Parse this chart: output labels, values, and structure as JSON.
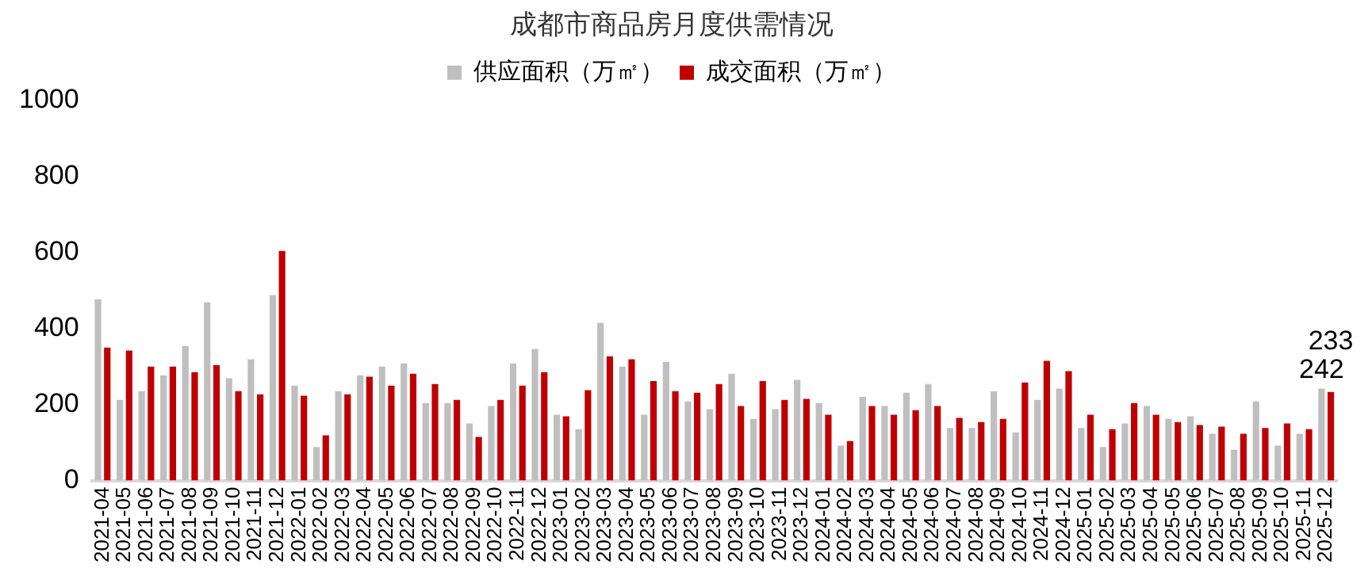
{
  "chart_data": {
    "type": "bar",
    "title": "成都市商品房月度供需情况",
    "categories": [
      "2021-04",
      "2021-05",
      "2021-06",
      "2021-07",
      "2021-08",
      "2021-09",
      "2021-10",
      "2021-11",
      "2021-12",
      "2022-01",
      "2022-02",
      "2022-03",
      "2022-04",
      "2022-05",
      "2022-06",
      "2022-07",
      "2022-08",
      "2022-09",
      "2022-10",
      "2022-11",
      "2022-12",
      "2023-01",
      "2023-02",
      "2023-03",
      "2023-04",
      "2023-05",
      "2023-06",
      "2023-07",
      "2023-08",
      "2023-09",
      "2023-10",
      "2023-11",
      "2023-12",
      "2024-01",
      "2024-02",
      "2024-03",
      "2024-04",
      "2024-05",
      "2024-06",
      "2024-07",
      "2024-08",
      "2024-09",
      "2024-10",
      "2024-11",
      "2024-12",
      "2025-01",
      "2025-02",
      "2025-03",
      "2025-04",
      "2025-05",
      "2025-06",
      "2025-07",
      "2025-08",
      "2025-09",
      "2025-10",
      "2025-11",
      "2025-12"
    ],
    "series": [
      {
        "name": "供应面积（万㎡）",
        "color": "#bfbfbf",
        "values": [
          477,
          212,
          235,
          277,
          354,
          469,
          269,
          319,
          488,
          250,
          88,
          235,
          277,
          300,
          308,
          204,
          204,
          150,
          196,
          308,
          346,
          173,
          135,
          415,
          300,
          173,
          312,
          208,
          188,
          281,
          162,
          188,
          265,
          204,
          92,
          220,
          196,
          231,
          254,
          138,
          138,
          235,
          127,
          212,
          242,
          138,
          88,
          150,
          196,
          162,
          169,
          123,
          81,
          208,
          92,
          123,
          242
        ],
        "value_labels": [
          null,
          null,
          null,
          null,
          null,
          null,
          null,
          null,
          null,
          null,
          null,
          null,
          null,
          null,
          null,
          null,
          null,
          null,
          null,
          null,
          null,
          null,
          null,
          null,
          null,
          null,
          null,
          null,
          null,
          null,
          null,
          null,
          null,
          null,
          null,
          null,
          null,
          null,
          null,
          null,
          null,
          null,
          null,
          null,
          null,
          null,
          null,
          null,
          null,
          null,
          null,
          null,
          null,
          null,
          null,
          null,
          "242"
        ]
      },
      {
        "name": "成交面积（万㎡）",
        "color": "#c00000",
        "values": [
          350,
          342,
          300,
          300,
          285,
          304,
          235,
          227,
          604,
          223,
          119,
          227,
          273,
          250,
          281,
          254,
          212,
          115,
          212,
          250,
          285,
          169,
          238,
          327,
          319,
          262,
          235,
          231,
          254,
          196,
          262,
          212,
          215,
          173,
          104,
          196,
          173,
          185,
          196,
          165,
          154,
          162,
          258,
          315,
          288,
          173,
          135,
          204,
          173,
          154,
          146,
          142,
          123,
          138,
          150,
          135,
          233
        ],
        "value_labels": [
          null,
          null,
          null,
          null,
          null,
          null,
          null,
          null,
          null,
          null,
          null,
          null,
          null,
          null,
          null,
          null,
          null,
          null,
          null,
          null,
          null,
          null,
          null,
          null,
          null,
          null,
          null,
          null,
          null,
          null,
          null,
          null,
          null,
          null,
          null,
          null,
          null,
          null,
          null,
          null,
          null,
          null,
          null,
          null,
          null,
          null,
          null,
          null,
          null,
          null,
          null,
          null,
          null,
          null,
          null,
          null,
          "233"
        ]
      }
    ],
    "ylim": [
      0,
      1000
    ],
    "yticks": [
      0,
      200,
      400,
      600,
      800,
      1000
    ],
    "grid": false,
    "legend": "top"
  }
}
